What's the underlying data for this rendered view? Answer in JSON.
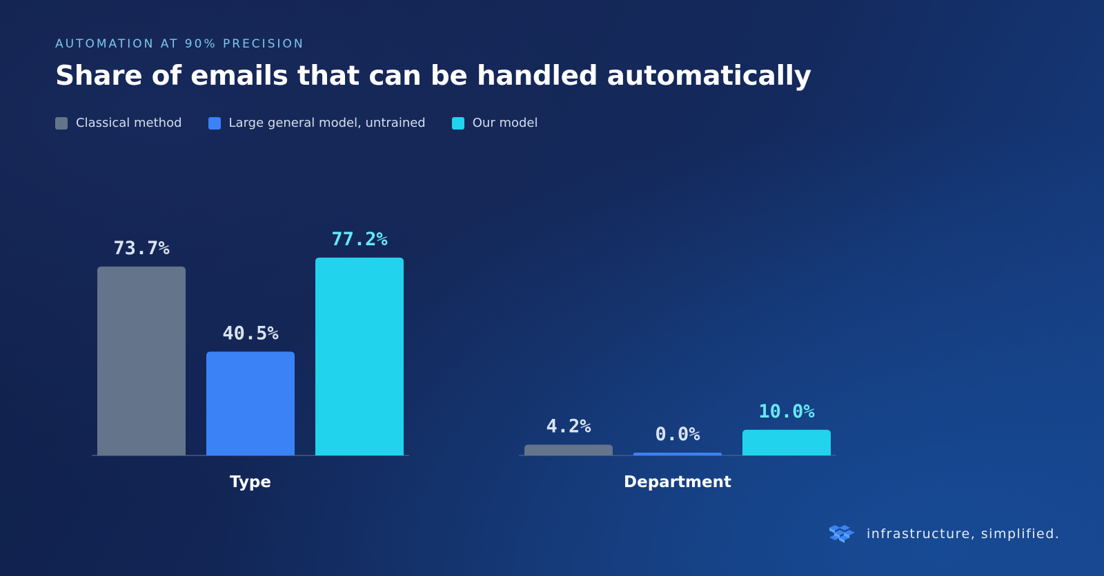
{
  "eyebrow": "AUTOMATION AT 90% PRECISION",
  "title": "Share of emails that can be handled automatically",
  "brand": {
    "text": "infrastructure, simplified.",
    "icon": "cube-cluster-logo-icon"
  },
  "colors": {
    "classical": "#64748b",
    "general": "#3b82f6",
    "ours": "#22d3ee"
  },
  "chart_data": {
    "type": "bar",
    "title": "Share of emails that can be handled automatically",
    "categories": [
      "Type",
      "Department"
    ],
    "series": [
      {
        "name": "Classical method",
        "values": [
          73.7,
          4.2
        ],
        "labels": [
          "73.7%",
          "4.2%"
        ]
      },
      {
        "name": "Large general model, untrained",
        "values": [
          40.5,
          0.0
        ],
        "labels": [
          "40.5%",
          "0.0%"
        ]
      },
      {
        "name": "Our model",
        "values": [
          77.2,
          10.0
        ],
        "labels": [
          "77.2%",
          "10.0%"
        ]
      }
    ],
    "unit": "%",
    "ylim": [
      0,
      100
    ],
    "grid": false,
    "legend_position": "top-left"
  }
}
